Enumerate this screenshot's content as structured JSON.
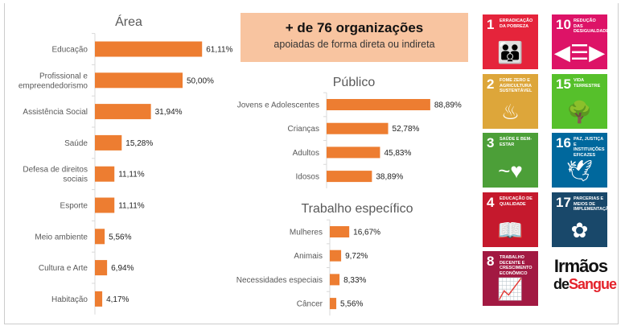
{
  "header": {
    "title": "+ de 76 organizações",
    "subtitle": "apoiadas de forma direta ou indireta"
  },
  "chart_data": [
    {
      "type": "bar",
      "orientation": "horizontal",
      "title": "Área",
      "categories": [
        "Educação",
        "Profissional e empreendedorismo",
        "Assistência Social",
        "Saúde",
        "Defesa de direitos sociais",
        "Esporte",
        "Meio ambiente",
        "Cultura e Arte",
        "Habitação"
      ],
      "values": [
        61.11,
        50.0,
        31.94,
        15.28,
        11.11,
        11.11,
        5.56,
        6.94,
        4.17
      ],
      "labels": [
        "61,11%",
        "50,00%",
        "31,94%",
        "15,28%",
        "11,11%",
        "11,11%",
        "5,56%",
        "6,94%",
        "4,17%"
      ],
      "xlim": [
        0,
        100
      ],
      "color": "#ed7d31"
    },
    {
      "type": "bar",
      "orientation": "horizontal",
      "title": "Público",
      "categories": [
        "Jovens e Adolescentes",
        "Crianças",
        "Adultos",
        "Idosos"
      ],
      "values": [
        88.89,
        52.78,
        45.83,
        38.89
      ],
      "labels": [
        "88,89%",
        "52,78%",
        "45,83%",
        "38,89%"
      ],
      "xlim": [
        0,
        100
      ],
      "color": "#ed7d31"
    },
    {
      "type": "bar",
      "orientation": "horizontal",
      "title": "Trabalho específico",
      "categories": [
        "Mulheres",
        "Animais",
        "Necessidades especiais",
        "Câncer"
      ],
      "values": [
        16.67,
        9.72,
        8.33,
        5.56
      ],
      "labels": [
        "16,67%",
        "9,72%",
        "8,33%",
        "5,56%"
      ],
      "xlim": [
        0,
        100
      ],
      "color": "#ed7d31"
    }
  ],
  "sdgs": [
    {
      "num": "1",
      "title": "Erradicação da pobreza",
      "color": "#e5243b",
      "icon": "family-icon",
      "glyph": "👪"
    },
    {
      "num": "10",
      "title": "Redução das desigualdades",
      "color": "#dd1367",
      "icon": "equality-arrows-icon",
      "glyph": "◀☰▶"
    },
    {
      "num": "2",
      "title": "Fome zero e agricultura sustentável",
      "color": "#dda63a",
      "icon": "bowl-icon",
      "glyph": "♨"
    },
    {
      "num": "15",
      "title": "Vida terrestre",
      "color": "#56c02b",
      "icon": "tree-icon",
      "glyph": "🌳"
    },
    {
      "num": "3",
      "title": "Saúde e bem-estar",
      "color": "#4c9f38",
      "icon": "heartbeat-icon",
      "glyph": "~♥"
    },
    {
      "num": "16",
      "title": "Paz, justiça e instituições eficazes",
      "color": "#00689d",
      "icon": "dove-icon",
      "glyph": "🕊"
    },
    {
      "num": "4",
      "title": "Educação de qualidade",
      "color": "#c5192d",
      "icon": "book-icon",
      "glyph": "📖"
    },
    {
      "num": "17",
      "title": "Parcerias e meios de implementação",
      "color": "#19486a",
      "icon": "rings-icon",
      "glyph": "✿"
    },
    {
      "num": "8",
      "title": "Trabalho decente e crescimento econômico",
      "color": "#a21942",
      "icon": "growth-chart-icon",
      "glyph": "📈"
    }
  ],
  "logo": {
    "line1": "Irmãos",
    "line2a": "de",
    "line2b": "Sangue"
  }
}
